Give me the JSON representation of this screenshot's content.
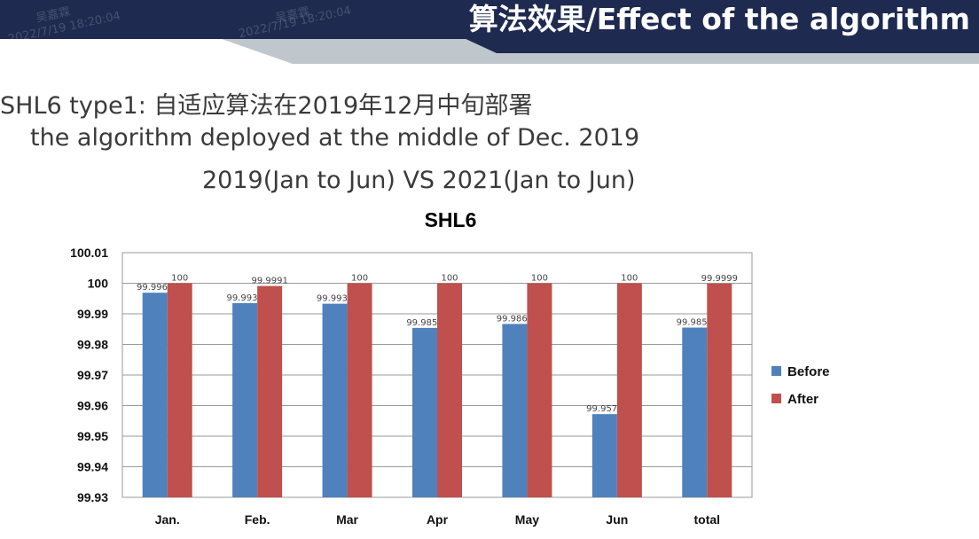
{
  "header": {
    "title": "算法效果/Effect of the algorithm",
    "watermark_name": "吴嘉霖",
    "watermark_time": "2022/7/19 18:20:04",
    "colors": {
      "dark": "#1e2a50",
      "light": "#bfc6cc"
    }
  },
  "subtitle": {
    "line1": "SHL6 type1: 自适应算法在2019年12月中旬部署",
    "line2": "the algorithm deployed at the middle of Dec. 2019",
    "line3": "2019(Jan to Jun) VS 2021(Jan to Jun)"
  },
  "chart_data": {
    "type": "bar",
    "title": "SHL6",
    "categories": [
      "Jan.",
      "Feb.",
      "Mar",
      "Apr",
      "May",
      "Jun",
      "total"
    ],
    "series": [
      {
        "name": "Before",
        "color": "#4f81bd",
        "values": [
          99.9969,
          99.9935,
          99.9933,
          99.9854,
          99.9867,
          99.9572,
          99.9855
        ],
        "labels": [
          "99.9969",
          "99.9935",
          "99.9933",
          "99.9854",
          "99.9867",
          "99.9572",
          "99.9855"
        ]
      },
      {
        "name": "After",
        "color": "#c0504d",
        "values": [
          100,
          99.9991,
          100,
          100,
          100,
          100,
          99.9999
        ],
        "labels": [
          "100",
          "99.9991",
          "100",
          "100",
          "100",
          "100",
          "99.9999"
        ]
      }
    ],
    "ylim": [
      99.93,
      100.01
    ],
    "yticks": [
      "99.93",
      "99.94",
      "99.95",
      "99.96",
      "99.97",
      "99.98",
      "99.99",
      "100",
      "100.01"
    ],
    "grid": true,
    "legend_position": "right"
  }
}
